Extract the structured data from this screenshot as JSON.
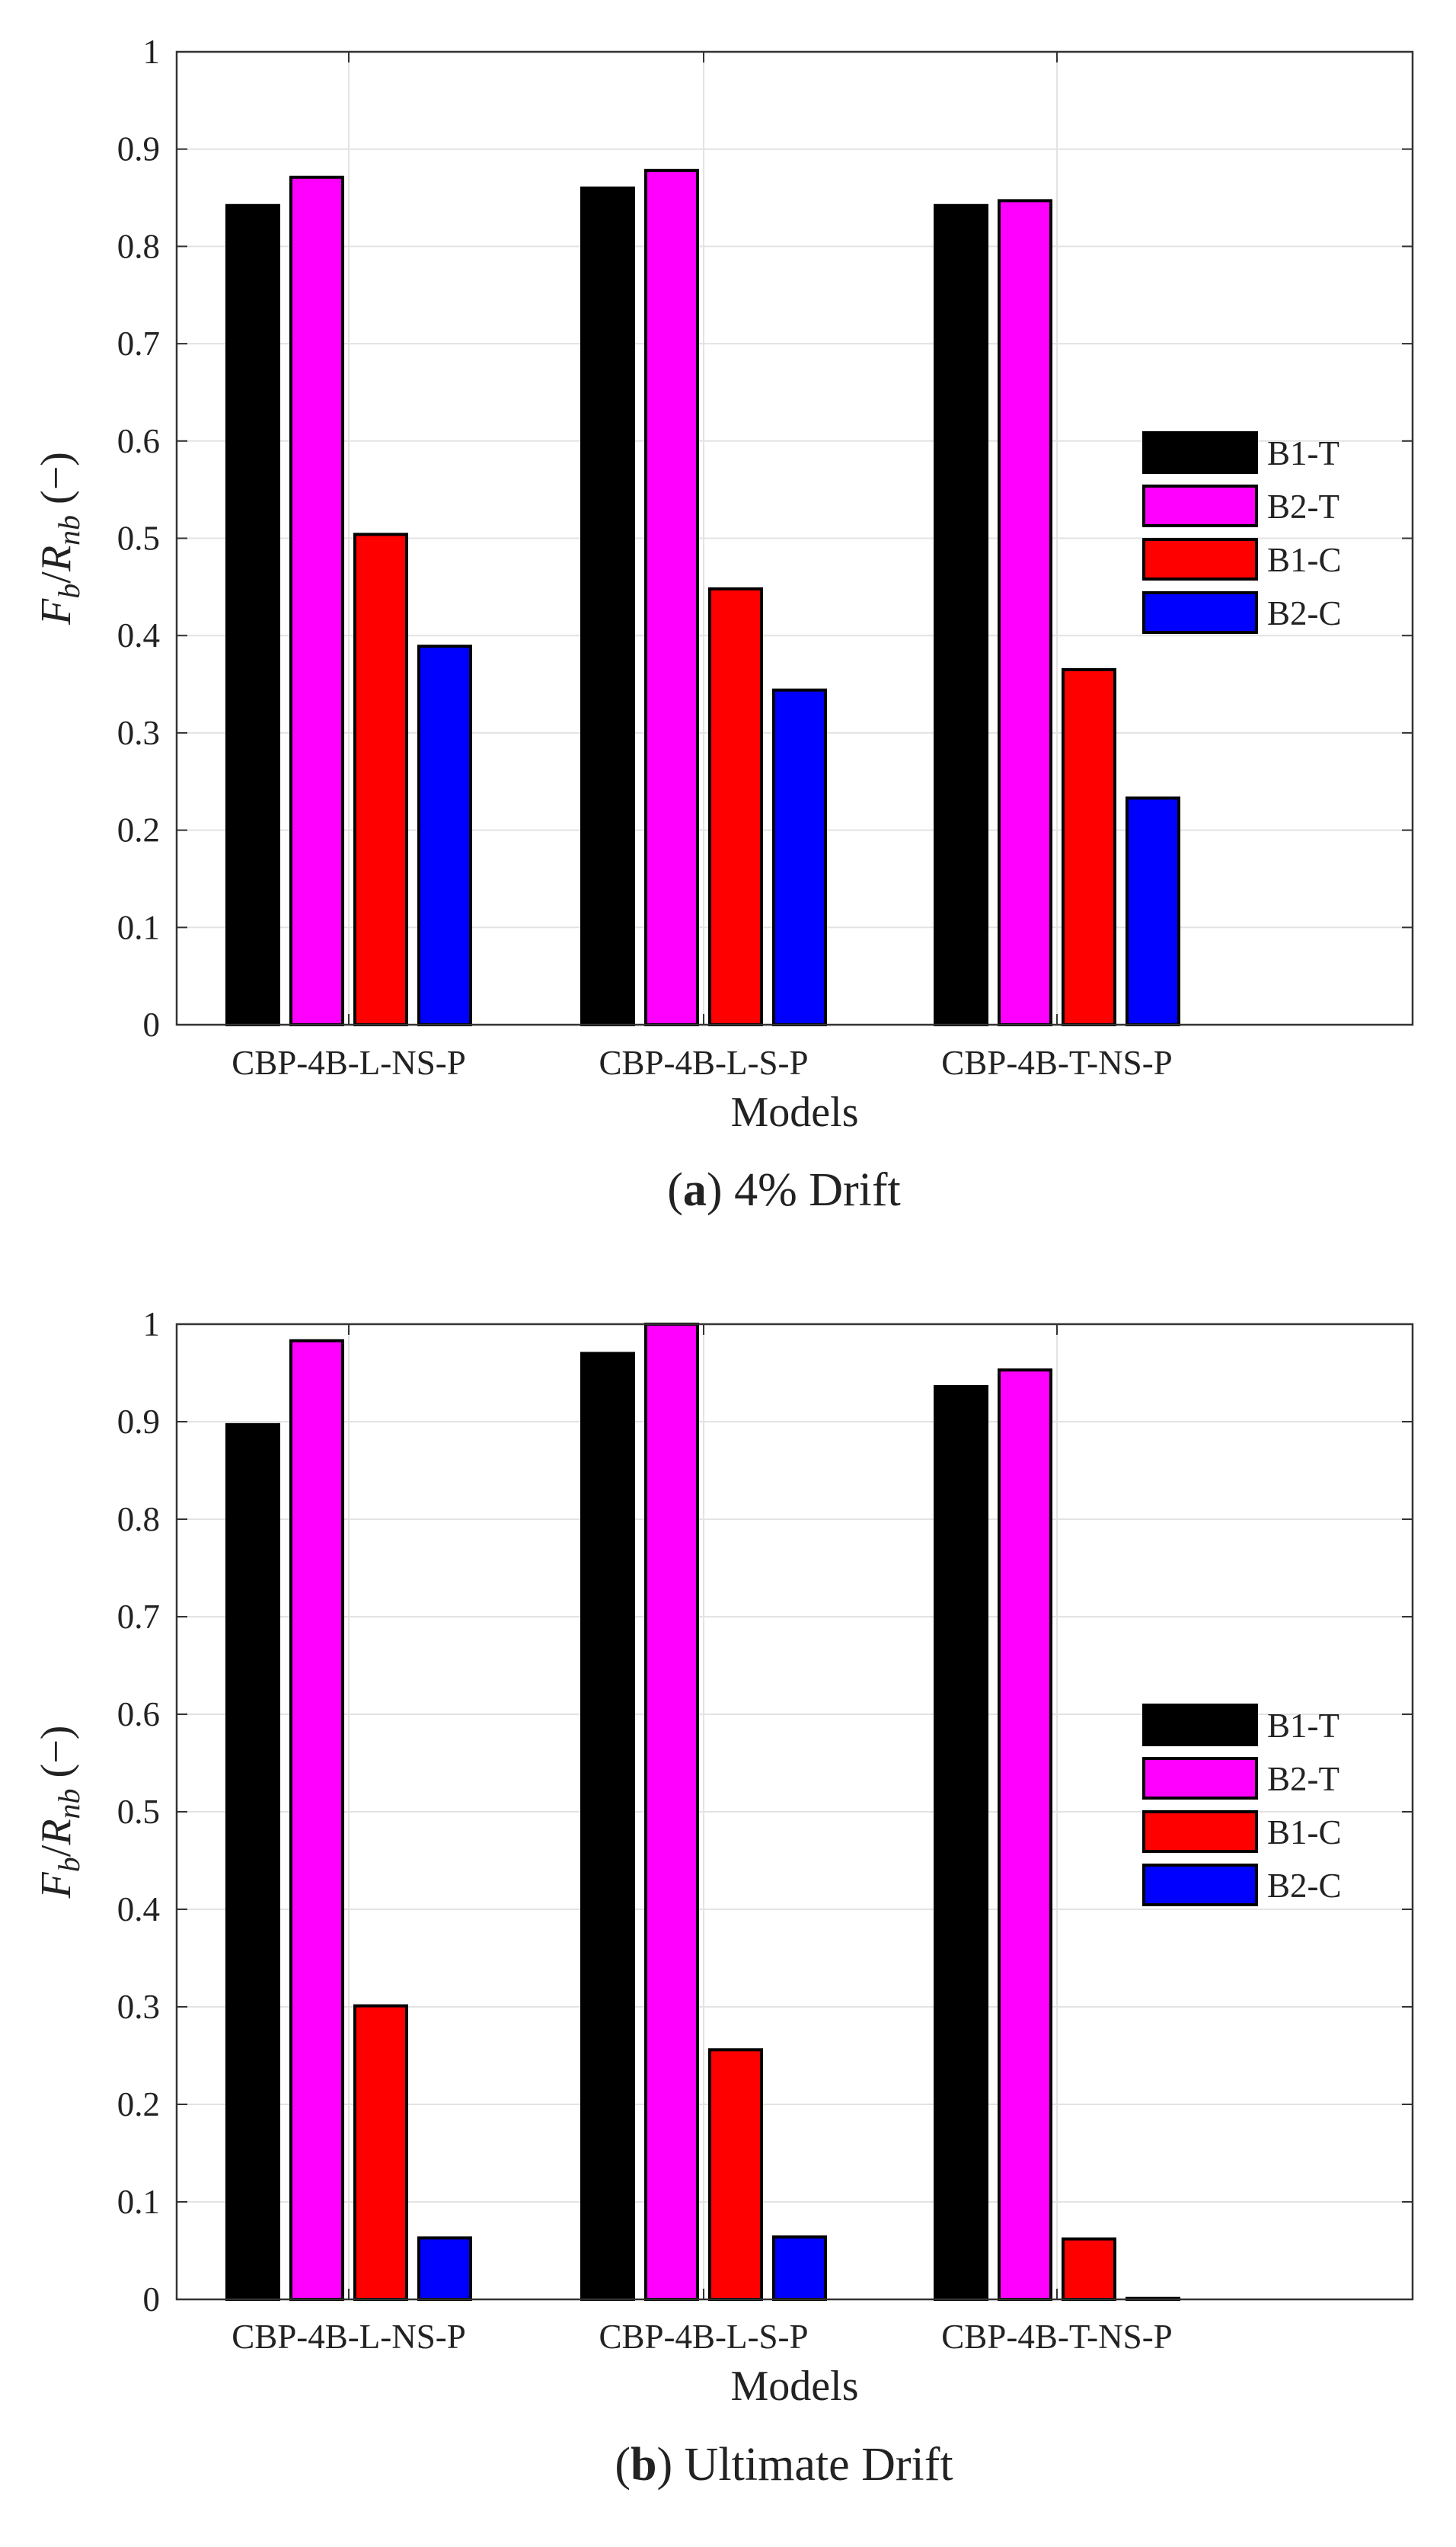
{
  "chart_data": [
    {
      "type": "bar",
      "caption_letter": "a",
      "caption_text": " 4% Drift",
      "caption_open": "(",
      "caption_close": ")",
      "xlabel": "Models",
      "ylabel": "F_b/R_nb (−)",
      "ylabel_parts": {
        "F": "F",
        "b": "b",
        "slash": "/",
        "R": "R",
        "nb": "nb",
        "unit": " (−)"
      },
      "ylim": [
        0,
        1
      ],
      "yticks": [
        "0",
        "0.1",
        "0.2",
        "0.3",
        "0.4",
        "0.5",
        "0.6",
        "0.7",
        "0.8",
        "0.9",
        "1"
      ],
      "grid": true,
      "legend_position": "right",
      "categories": [
        "CBP-4B-L-NS-P",
        "CBP-4B-L-S-P",
        "CBP-4B-T-NS-P"
      ],
      "series": [
        {
          "name": "B1-T",
          "color": "#000000",
          "values": [
            0.842,
            0.86,
            0.842
          ]
        },
        {
          "name": "B2-T",
          "color": "#ff00ff",
          "values": [
            0.871,
            0.878,
            0.847
          ]
        },
        {
          "name": "B1-C",
          "color": "#ff0000",
          "values": [
            0.504,
            0.448,
            0.365
          ]
        },
        {
          "name": "B2-C",
          "color": "#0000ff",
          "values": [
            0.389,
            0.344,
            0.233
          ]
        }
      ]
    },
    {
      "type": "bar",
      "caption_letter": "b",
      "caption_text": " Ultimate Drift",
      "caption_open": "(",
      "caption_close": ")",
      "xlabel": "Models",
      "ylabel": "F_b/R_nb (−)",
      "ylabel_parts": {
        "F": "F",
        "b": "b",
        "slash": "/",
        "R": "R",
        "nb": "nb",
        "unit": " (−)"
      },
      "ylim": [
        0,
        1
      ],
      "yticks": [
        "0",
        "0.1",
        "0.2",
        "0.3",
        "0.4",
        "0.5",
        "0.6",
        "0.7",
        "0.8",
        "0.9",
        "1"
      ],
      "grid": true,
      "legend_position": "right",
      "categories": [
        "CBP-4B-L-NS-P",
        "CBP-4B-L-S-P",
        "CBP-4B-T-NS-P"
      ],
      "series": [
        {
          "name": "B1-T",
          "color": "#000000",
          "values": [
            0.897,
            0.97,
            0.936
          ]
        },
        {
          "name": "B2-T",
          "color": "#ff00ff",
          "values": [
            0.983,
            1.0,
            0.953
          ]
        },
        {
          "name": "B1-C",
          "color": "#ff0000",
          "values": [
            0.301,
            0.256,
            0.062
          ]
        },
        {
          "name": "B2-C",
          "color": "#0000ff",
          "values": [
            0.063,
            0.064,
            0.001
          ]
        }
      ]
    }
  ]
}
